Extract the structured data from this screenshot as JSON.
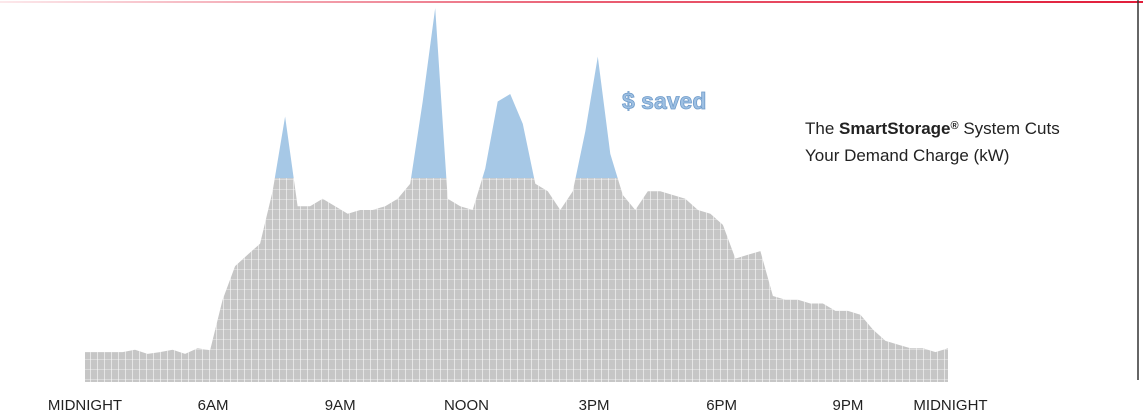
{
  "chart_data": {
    "type": "area",
    "annotation": "$ saved",
    "title_lines": [
      [
        "The ",
        "SmartStorage",
        "®",
        " System Cuts"
      ],
      [
        "Your Demand Charge (kW)"
      ]
    ],
    "values": [
      8,
      8,
      8,
      8,
      8.6,
      7.5,
      8,
      8.6,
      7.5,
      9,
      8.5,
      22,
      31,
      34,
      37,
      51,
      71,
      47,
      47,
      49,
      47,
      45,
      46,
      46,
      47,
      49,
      53,
      75,
      100,
      49,
      47,
      46,
      57,
      75,
      77,
      69,
      53,
      51,
      46,
      51,
      67,
      87,
      61,
      50,
      46,
      51,
      51,
      50,
      49,
      46,
      45,
      42,
      33,
      34,
      35,
      23,
      22,
      22,
      21,
      21,
      19,
      19,
      18,
      14,
      11,
      10,
      9,
      9,
      8,
      9
    ],
    "xlim": [
      0,
      69
    ],
    "xticks": [
      {
        "value": 0,
        "label": "MIDNIGHT"
      },
      {
        "value": 10.24,
        "label": "6AM"
      },
      {
        "value": 20.4,
        "label": "9AM"
      },
      {
        "value": 30.5,
        "label": "NOON"
      },
      {
        "value": 40.7,
        "label": "3PM"
      },
      {
        "value": 50.9,
        "label": "6PM"
      },
      {
        "value": 61,
        "label": "9PM"
      },
      {
        "value": 69.2,
        "label": "MIDNIGHT"
      }
    ],
    "ylim": [
      0,
      100
    ],
    "threshold": 54.5,
    "color": "#c6c6c6",
    "peak_color": "#a6c8e6",
    "threshold_color": "#8fb3d6"
  }
}
